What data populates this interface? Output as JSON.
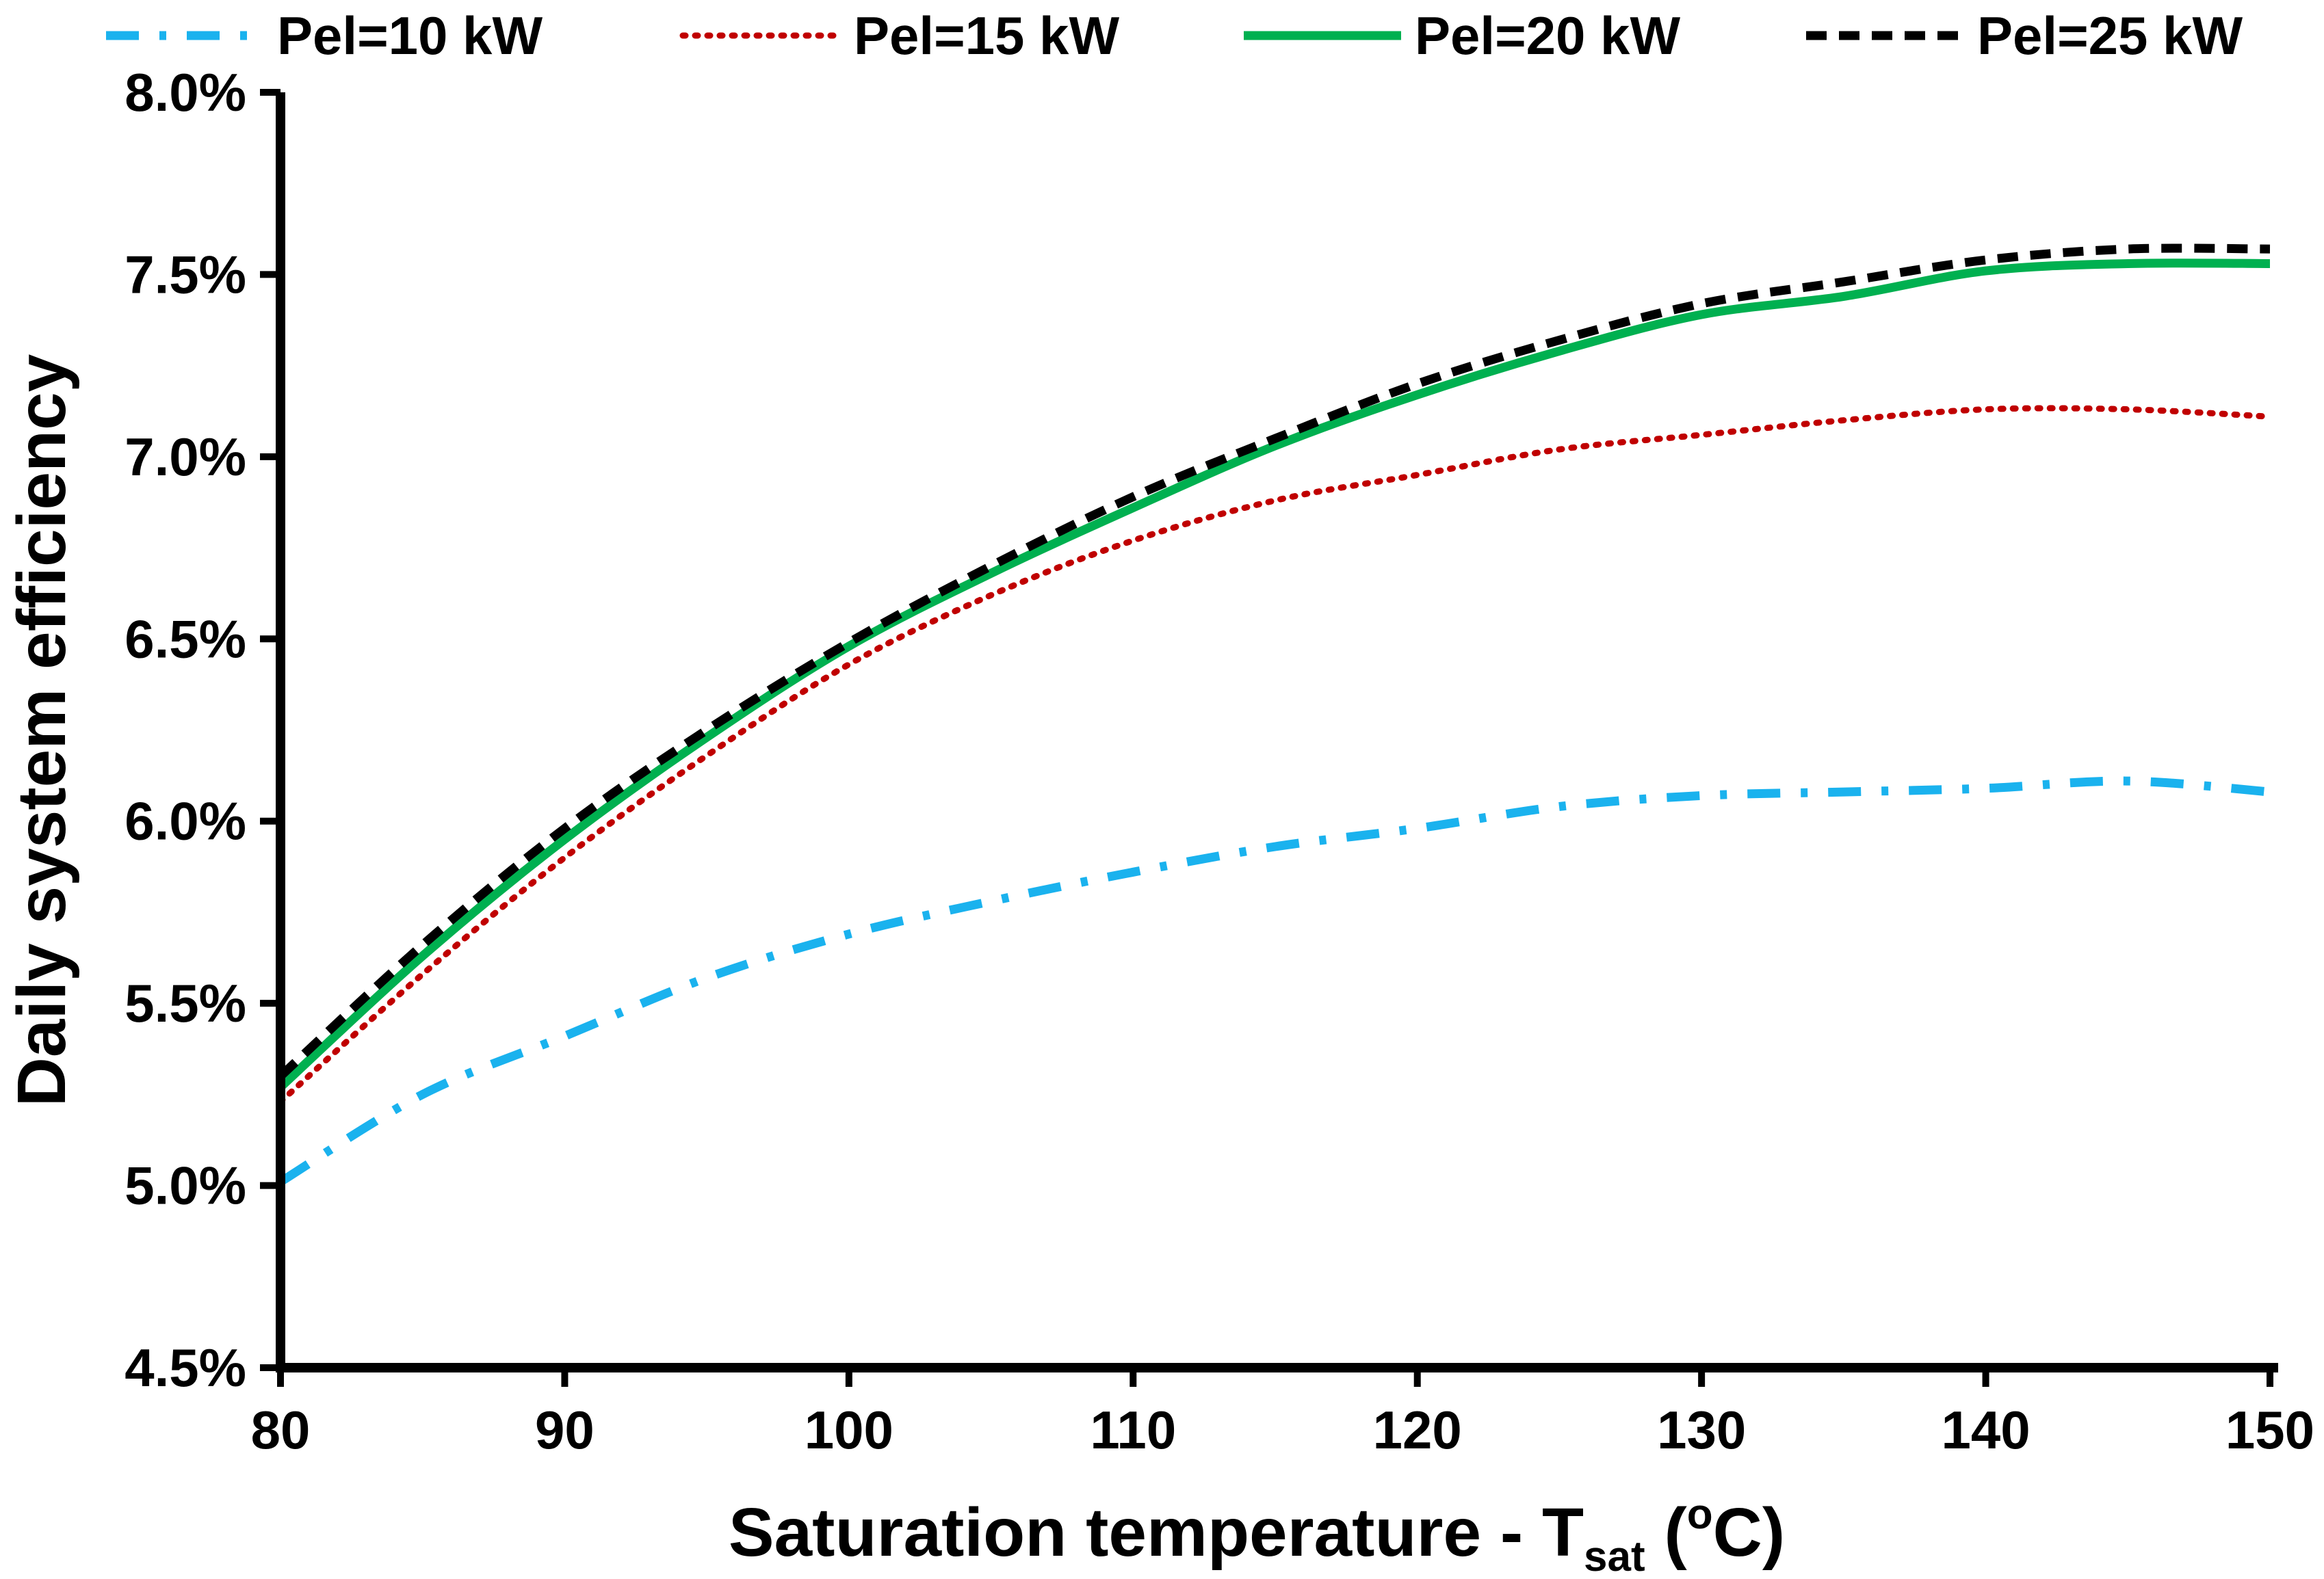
{
  "chart_data": {
    "type": "line",
    "xlabel": {
      "main": "Saturation temperature - T",
      "sub": "sat",
      "open": " (",
      "sup": "o",
      "close": "C)"
    },
    "ylabel": "Daily system efficiency",
    "xlim": [
      80,
      150
    ],
    "ylim": [
      4.5,
      8.0
    ],
    "x_ticks": [
      80,
      90,
      100,
      110,
      120,
      130,
      140,
      150
    ],
    "y_ticks": [
      4.5,
      5.0,
      5.5,
      6.0,
      6.5,
      7.0,
      7.5,
      8.0
    ],
    "x_tick_labels": [
      "80",
      "90",
      "100",
      "110",
      "120",
      "130",
      "140",
      "150"
    ],
    "y_tick_labels": [
      "4.5%",
      "5.0%",
      "5.5%",
      "6.0%",
      "6.5%",
      "7.0%",
      "7.5%",
      "8.0%"
    ],
    "grid": false,
    "legend_position": "top",
    "x": [
      80,
      85,
      90,
      95,
      100,
      105,
      110,
      115,
      120,
      125,
      130,
      135,
      140,
      145,
      150
    ],
    "series": [
      {
        "name": "Pel=10 kW",
        "color": "#1ab2ee",
        "style": "dash-dot",
        "values": [
          5.01,
          5.25,
          5.41,
          5.57,
          5.69,
          5.78,
          5.86,
          5.93,
          5.98,
          6.04,
          6.07,
          6.08,
          6.09,
          6.11,
          6.08
        ]
      },
      {
        "name": "Pel=15 kW",
        "color": "#c00000",
        "style": "dotted",
        "values": [
          5.23,
          5.58,
          5.9,
          6.18,
          6.43,
          6.62,
          6.77,
          6.88,
          6.95,
          7.02,
          7.06,
          7.1,
          7.13,
          7.13,
          7.11
        ]
      },
      {
        "name": "Pel=20 kW",
        "color": "#00b050",
        "style": "solid",
        "values": [
          5.27,
          5.63,
          5.95,
          6.23,
          6.48,
          6.68,
          6.86,
          7.03,
          7.17,
          7.29,
          7.39,
          7.44,
          7.51,
          7.53,
          7.53
        ]
      },
      {
        "name": "Pel=25 kW",
        "color": "#000000",
        "style": "dashed",
        "values": [
          5.3,
          5.66,
          5.98,
          6.25,
          6.49,
          6.7,
          6.89,
          7.05,
          7.2,
          7.32,
          7.42,
          7.48,
          7.54,
          7.57,
          7.57
        ]
      }
    ]
  }
}
